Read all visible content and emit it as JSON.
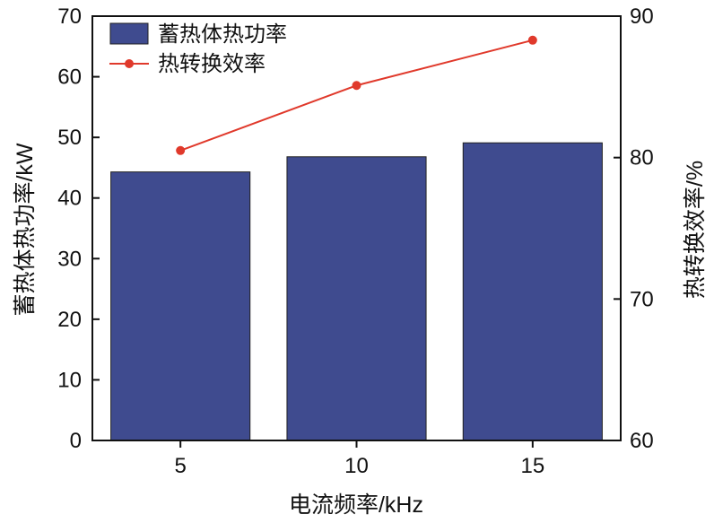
{
  "chart_data": {
    "type": "bar",
    "categories": [
      "5",
      "10",
      "15"
    ],
    "xlabel": "电流频率/kHz",
    "ylabel": "蓄热体热功率/kW",
    "y2label": "热转换效率/%",
    "ylim": [
      0,
      70
    ],
    "y2lim": [
      60,
      90
    ],
    "yticks": [
      0,
      10,
      20,
      30,
      40,
      50,
      60,
      70
    ],
    "y2ticks": [
      60,
      70,
      80,
      90
    ],
    "grid": false,
    "legend_position": "top-left",
    "series": [
      {
        "name": "蓄热体热功率",
        "type": "bar",
        "axis": "left",
        "values": [
          44.3,
          46.8,
          49.1
        ],
        "color": "#3f4b8f"
      },
      {
        "name": "热转换效率",
        "type": "line",
        "axis": "right",
        "values": [
          80.5,
          85.1,
          88.3
        ],
        "color": "#e0392b"
      }
    ]
  }
}
